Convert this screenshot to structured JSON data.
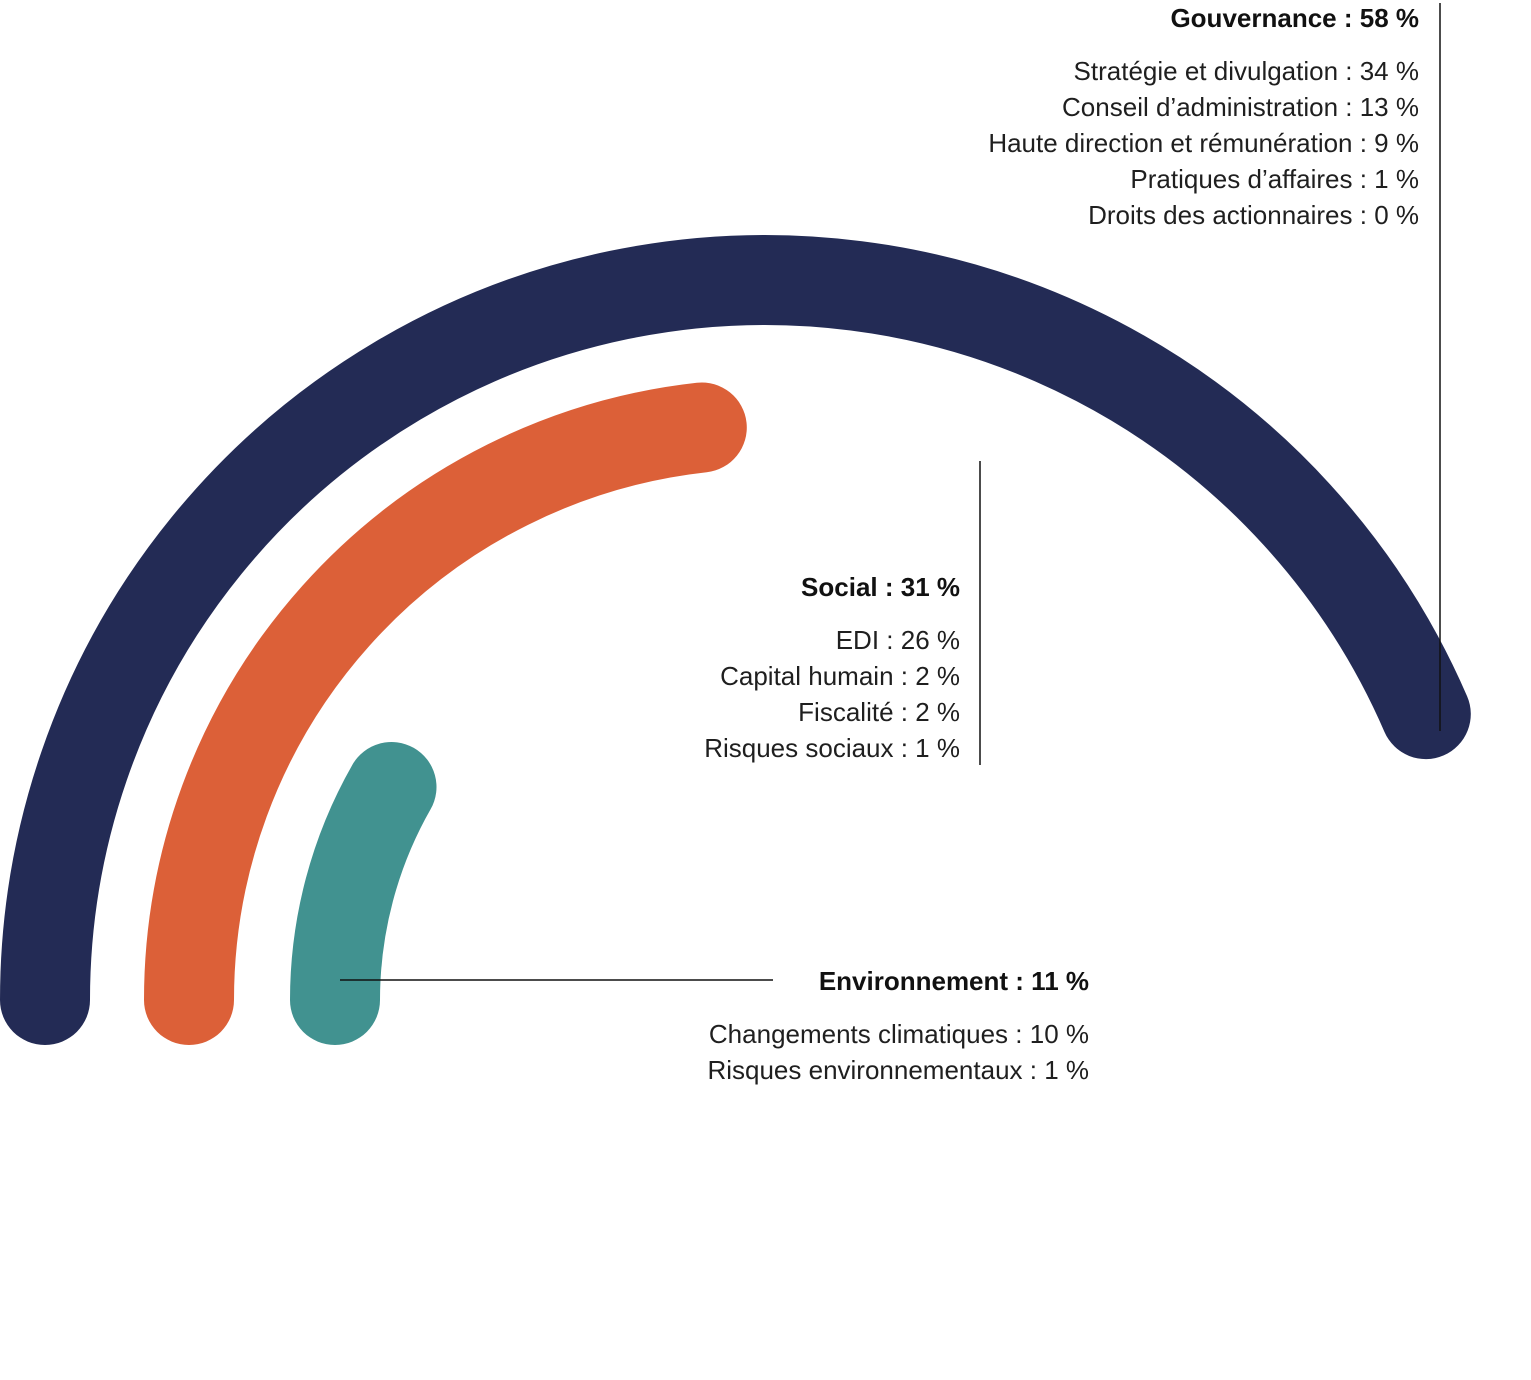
{
  "chart_data": {
    "type": "radial-bar",
    "title": "",
    "series": [
      {
        "name": "Gouvernance",
        "value": 58,
        "color": "#232B55",
        "title_label": "Gouvernance : 58 %",
        "breakdown": [
          {
            "label": "Stratégie et divulgation",
            "value": 34,
            "text": "Stratégie et divulgation : 34 %"
          },
          {
            "label": "Conseil d’administration",
            "value": 13,
            "text": "Conseil d’administration : 13 %"
          },
          {
            "label": "Haute direction et rémunération",
            "value": 9,
            "text": "Haute direction et rémunération : 9 %"
          },
          {
            "label": "Pratiques d’affaires",
            "value": 1,
            "text": "Pratiques d’affaires : 1 %"
          },
          {
            "label": "Droits des actionnaires",
            "value": 0,
            "text": "Droits des actionnaires : 0 %"
          }
        ]
      },
      {
        "name": "Social",
        "value": 31,
        "color": "#DC6038",
        "title_label": "Social : 31 %",
        "breakdown": [
          {
            "label": "EDI",
            "value": 26,
            "text": "EDI : 26 %"
          },
          {
            "label": "Capital humain",
            "value": 2,
            "text": "Capital humain : 2 %"
          },
          {
            "label": "Fiscalité",
            "value": 2,
            "text": "Fiscalité : 2 %"
          },
          {
            "label": "Risques sociaux",
            "value": 1,
            "text": "Risques sociaux : 1 %"
          }
        ]
      },
      {
        "name": "Environnement",
        "value": 11,
        "color": "#419290",
        "title_label": "Environnement : 11 %",
        "breakdown": [
          {
            "label": "Changements climatiques",
            "value": 10,
            "text": "Changements climatiques : 10 %"
          },
          {
            "label": "Risques environnementaux",
            "value": 1,
            "text": "Risques environnementaux : 1 %"
          }
        ]
      }
    ]
  }
}
